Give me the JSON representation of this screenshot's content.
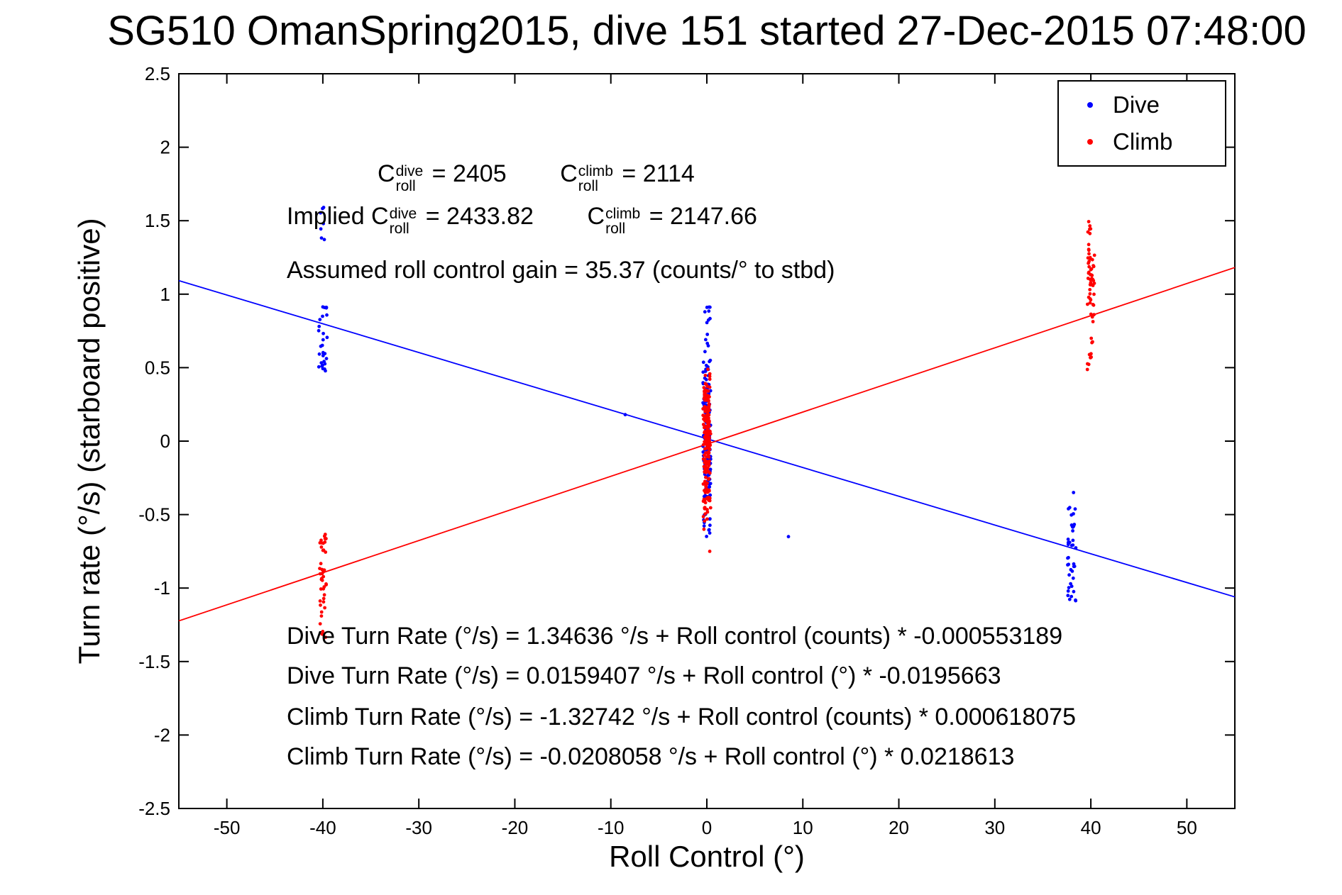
{
  "chart_data": {
    "type": "scatter",
    "title": "SG510 OmanSpring2015, dive 151 started 27-Dec-2015 07:48:00",
    "xlabel": "Roll Control (°)",
    "ylabel": "Turn rate (°/s) (starboard positive)",
    "xlim": [
      -55,
      55
    ],
    "ylim": [
      -2.5,
      2.5
    ],
    "x_ticks": [
      -50,
      -40,
      -30,
      -20,
      -10,
      0,
      10,
      20,
      30,
      40,
      50
    ],
    "y_ticks": [
      -2.5,
      -2,
      -1.5,
      -1,
      -0.5,
      0,
      0.5,
      1,
      1.5,
      2,
      2.5
    ],
    "grid": false,
    "legend": {
      "position": "top-right",
      "entries": [
        {
          "label": "Dive",
          "color": "#0000ff"
        },
        {
          "label": "Climb",
          "color": "#ff0000"
        }
      ]
    },
    "series": [
      {
        "name": "Dive",
        "color": "#0000ff",
        "marker": "dot",
        "fit_line": {
          "slope": -0.0195663,
          "intercept": 0.0159407
        },
        "clusters": [
          {
            "x": -40,
            "xj": 0.45,
            "ymin": 0.45,
            "ymax": 0.92,
            "n": 30
          },
          {
            "x": -40,
            "xj": 0.35,
            "ymin": 0.92,
            "ymax": 1.6,
            "n": 7
          },
          {
            "x": 0,
            "xj": 0.4,
            "ymin": -0.45,
            "ymax": 0.55,
            "n": 90
          },
          {
            "x": 0,
            "xj": 0.3,
            "ymin": -0.3,
            "ymax": 0.45,
            "n": 50
          },
          {
            "x": 0,
            "xj": 0.35,
            "ymin": -0.65,
            "ymax": -0.45,
            "n": 12
          },
          {
            "x": 0.1,
            "xj": 0.3,
            "ymin": 0.55,
            "ymax": 0.95,
            "n": 12
          },
          {
            "x": 38,
            "xj": 0.45,
            "ymin": -1.1,
            "ymax": -0.45,
            "n": 40
          }
        ],
        "points": [
          [
            -8.5,
            0.18
          ],
          [
            8.5,
            -0.65
          ],
          [
            38.2,
            -0.35
          ],
          [
            -0.2,
            0.88
          ]
        ]
      },
      {
        "name": "Climb",
        "color": "#ff0000",
        "marker": "dot",
        "fit_line": {
          "slope": 0.0218613,
          "intercept": -0.0208058
        },
        "clusters": [
          {
            "x": -40,
            "xj": 0.35,
            "ymin": -1.05,
            "ymax": -0.6,
            "n": 30
          },
          {
            "x": -40,
            "xj": 0.3,
            "ymin": -1.45,
            "ymax": -1.05,
            "n": 12
          },
          {
            "x": 0,
            "xj": 0.4,
            "ymin": -0.55,
            "ymax": 0.5,
            "n": 90
          },
          {
            "x": 0,
            "xj": 0.28,
            "ymin": -0.35,
            "ymax": 0.35,
            "n": 120
          },
          {
            "x": 40,
            "xj": 0.4,
            "ymin": 0.45,
            "ymax": 1.5,
            "n": 40
          },
          {
            "x": 40,
            "xj": 0.3,
            "ymin": 0.9,
            "ymax": 1.25,
            "n": 25
          }
        ],
        "points": [
          [
            0.3,
            -0.75
          ],
          [
            -0.3,
            -0.6
          ]
        ]
      }
    ],
    "annotations": {
      "stats_lines": [
        [
          {
            "t": "C"
          },
          {
            "sup": "dive",
            "sub": "roll"
          },
          {
            "t": " = 2405"
          },
          {
            "t": "        "
          },
          {
            "t": "C"
          },
          {
            "sup": "climb",
            "sub": "roll"
          },
          {
            "t": " = 2114"
          }
        ],
        [
          {
            "t": "Implied C"
          },
          {
            "sup": "dive",
            "sub": "roll"
          },
          {
            "t": " = 2433.82"
          },
          {
            "t": "        "
          },
          {
            "t": "C"
          },
          {
            "sup": "climb",
            "sub": "roll"
          },
          {
            "t": " = 2147.66"
          }
        ],
        [
          {
            "t": "Assumed roll control gain = 35.37 (counts/° to stbd)"
          }
        ]
      ],
      "equations": [
        "Dive Turn Rate (°/s) = 1.34636 °/s + Roll control (counts) * -0.000553189",
        "Dive Turn Rate (°/s) = 0.0159407 °/s + Roll control (°) * -0.0195663",
        "Climb Turn Rate (°/s) = -1.32742 °/s + Roll control (counts) * 0.000618075",
        "Climb Turn Rate (°/s) = -0.0208058 °/s + Roll control (°) * 0.0218613"
      ]
    }
  }
}
